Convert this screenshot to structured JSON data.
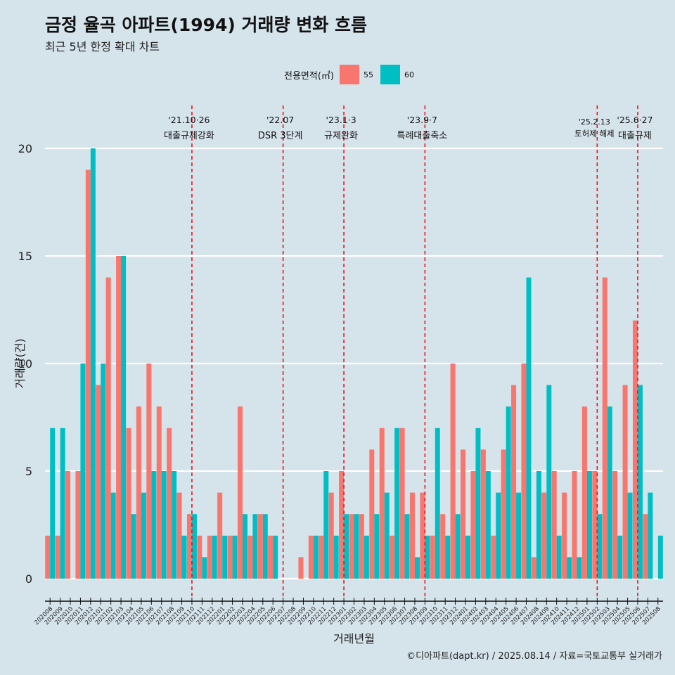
{
  "title": "금정 율곡 아파트(1994) 거래량 변화 흐름",
  "subtitle": "최근 5년 한정 확대 차트",
  "caption": "©디아파트(dapt.kr) / 2025.08.14 / 자료=국토교통부 실거래가",
  "colors": {
    "background": "#d5e3eb",
    "s55": "#f8766d",
    "s60": "#00bfc4",
    "event_line": "#e8141c",
    "grid": "#ffffff"
  },
  "legend": {
    "title": "전용면적(㎡)",
    "items": [
      {
        "label": "55",
        "color": "#f8766d"
      },
      {
        "label": "60",
        "color": "#00bfc4"
      }
    ]
  },
  "chart_data": {
    "type": "bar",
    "title": "금정 율곡 아파트(1994) 거래량 변화 흐름",
    "xlabel": "거래년월",
    "ylabel": "거래량(건)",
    "ylim": [
      0,
      20
    ],
    "yticks": [
      0,
      5,
      10,
      15,
      20
    ],
    "categories": [
      "202008",
      "202009",
      "202010",
      "202011",
      "202012",
      "202101",
      "202102",
      "202103",
      "202104",
      "202105",
      "202106",
      "202107",
      "202108",
      "202109",
      "202110",
      "202111",
      "202112",
      "202201",
      "202202",
      "202203",
      "202204",
      "202205",
      "202206",
      "202207",
      "202208",
      "202209",
      "202210",
      "202211",
      "202212",
      "202301",
      "202302",
      "202303",
      "202304",
      "202305",
      "202306",
      "202307",
      "202308",
      "202309",
      "202310",
      "202311",
      "202312",
      "202401",
      "202402",
      "202403",
      "202404",
      "202405",
      "202406",
      "202407",
      "202408",
      "202409",
      "202410",
      "202411",
      "202412",
      "202501",
      "202502",
      "202503",
      "202504",
      "202505",
      "202506",
      "202507",
      "202508"
    ],
    "series": [
      {
        "name": "55",
        "values": [
          2,
          2,
          5,
          5,
          19,
          9,
          14,
          15,
          7,
          8,
          10,
          8,
          7,
          4,
          3,
          2,
          2,
          4,
          2,
          8,
          2,
          3,
          2,
          0,
          0,
          1,
          2,
          2,
          4,
          5,
          3,
          3,
          6,
          7,
          2,
          7,
          4,
          4,
          2,
          3,
          10,
          6,
          5,
          6,
          2,
          6,
          9,
          10,
          1,
          4,
          5,
          4,
          5,
          8,
          5,
          14,
          5,
          9,
          12,
          3,
          0
        ]
      },
      {
        "name": "60",
        "values": [
          7,
          7,
          0,
          10,
          20,
          10,
          4,
          15,
          3,
          4,
          5,
          5,
          5,
          2,
          3,
          1,
          2,
          2,
          2,
          3,
          3,
          3,
          2,
          0,
          0,
          0,
          2,
          5,
          2,
          3,
          3,
          2,
          3,
          4,
          7,
          3,
          1,
          2,
          7,
          2,
          3,
          2,
          7,
          5,
          4,
          8,
          4,
          14,
          5,
          9,
          2,
          1,
          1,
          5,
          3,
          8,
          2,
          4,
          9,
          4,
          2
        ]
      }
    ],
    "events": [
      {
        "category": "202110",
        "date": "'21.10·26",
        "label": "대출규제강화"
      },
      {
        "category": "202207",
        "date": "'22.07",
        "label": "DSR 3단계"
      },
      {
        "category": "202301",
        "date": "'23.1·3",
        "label": "규제완화"
      },
      {
        "category": "202309",
        "date": "'23.9·7",
        "label": "특례대출축소"
      },
      {
        "category": "202502",
        "date": "'25.2.13",
        "label": "토허제 해제"
      },
      {
        "category": "202506",
        "date": "'25.6·27",
        "label": "대출규제"
      }
    ]
  }
}
